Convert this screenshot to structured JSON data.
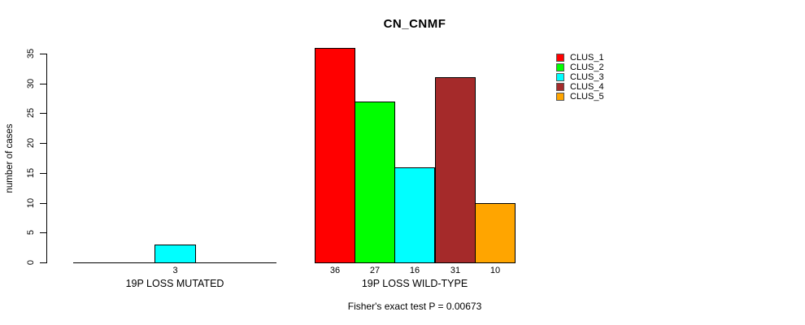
{
  "title": "CN_CNMF",
  "y_axis": {
    "label": "number of cases",
    "ticks": [
      "0",
      "5",
      "10",
      "15",
      "20",
      "25",
      "30",
      "35"
    ]
  },
  "caption": "Fisher's exact test P = 0.00673",
  "legend": {
    "items": [
      {
        "label": "CLUS_1",
        "color": "#FF0000"
      },
      {
        "label": "CLUS_2",
        "color": "#00FF00"
      },
      {
        "label": "CLUS_3",
        "color": "#00FFFF"
      },
      {
        "label": "CLUS_4",
        "color": "#A52A2A"
      },
      {
        "label": "CLUS_5",
        "color": "#FFA500"
      }
    ]
  },
  "chart_data": {
    "type": "bar",
    "title": "CN_CNMF",
    "xlabel": "",
    "ylabel": "number of cases",
    "ylim": [
      0,
      35
    ],
    "y_ticks": [
      0,
      5,
      10,
      15,
      20,
      25,
      30,
      35
    ],
    "grid": false,
    "legend_position": "top-right",
    "categories": [
      "19P LOSS MUTATED",
      "19P LOSS WILD-TYPE"
    ],
    "series": [
      {
        "name": "CLUS_1",
        "color": "#FF0000",
        "values": [
          0,
          36
        ]
      },
      {
        "name": "CLUS_2",
        "color": "#00FF00",
        "values": [
          0,
          27
        ]
      },
      {
        "name": "CLUS_3",
        "color": "#00FFFF",
        "values": [
          3,
          16
        ]
      },
      {
        "name": "CLUS_4",
        "color": "#A52A2A",
        "values": [
          0,
          31
        ]
      },
      {
        "name": "CLUS_5",
        "color": "#FFA500",
        "values": [
          0,
          10
        ]
      }
    ],
    "bar_value_labels": [
      [
        "",
        "",
        "3",
        "",
        ""
      ],
      [
        "36",
        "27",
        "16",
        "31",
        "10"
      ]
    ],
    "annotation": "Fisher's exact test P = 0.00673"
  }
}
